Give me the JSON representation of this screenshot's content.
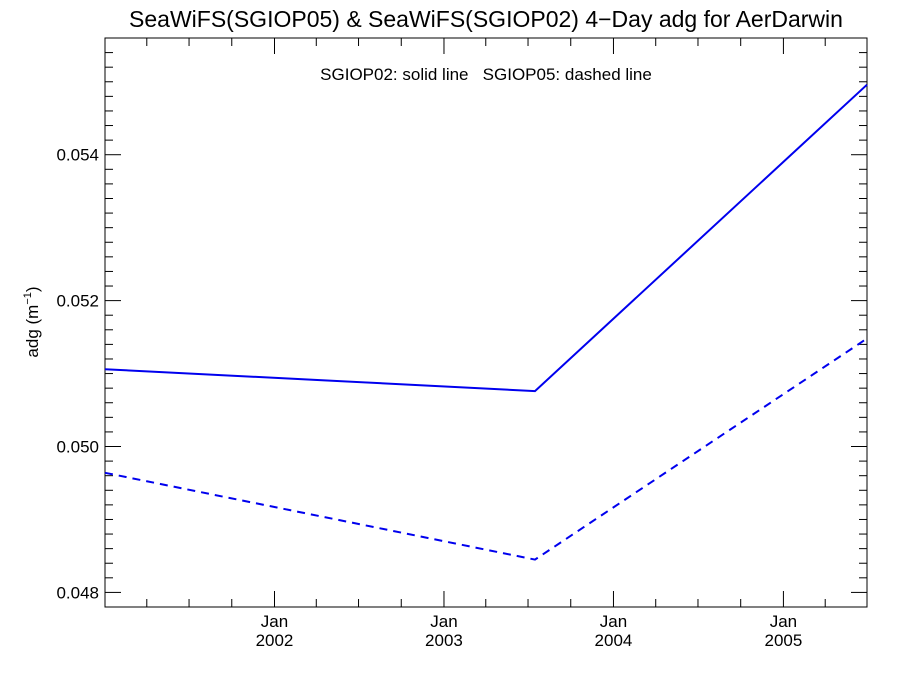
{
  "chart_data": {
    "type": "line",
    "title": "SeaWiFS(SGIOP05) & SeaWiFS(SGIOP02) 4−Day adg for AerDarwin",
    "annotation": "SGIOP02: solid line   SGIOP05: dashed line",
    "ylabel_main": "adg (m",
    "ylabel_sup": "−1",
    "ylabel_close": ")",
    "ylim": [
      0.0478,
      0.0556
    ],
    "x_range": [
      "2001-01-01",
      "2005-06-30"
    ],
    "x_ticks": [
      {
        "date": "2002-01-01",
        "month": "Jan",
        "year": "2002"
      },
      {
        "date": "2003-01-01",
        "month": "Jan",
        "year": "2003"
      },
      {
        "date": "2004-01-01",
        "month": "Jan",
        "year": "2004"
      },
      {
        "date": "2005-01-01",
        "month": "Jan",
        "year": "2005"
      }
    ],
    "y_ticks": [
      "0.048",
      "0.050",
      "0.052",
      "0.054"
    ],
    "grid": false,
    "line_color": "#0000ee",
    "series": [
      {
        "style": "solid",
        "x": [
          "2001-01-01",
          "2003-07-16",
          "2005-06-30"
        ],
        "y": [
          0.05106,
          0.05076,
          0.05496
        ]
      },
      {
        "style": "dashed",
        "x": [
          "2001-01-01",
          "2003-07-16",
          "2005-06-30"
        ],
        "y": [
          0.04964,
          0.04845,
          0.05148
        ]
      }
    ]
  }
}
